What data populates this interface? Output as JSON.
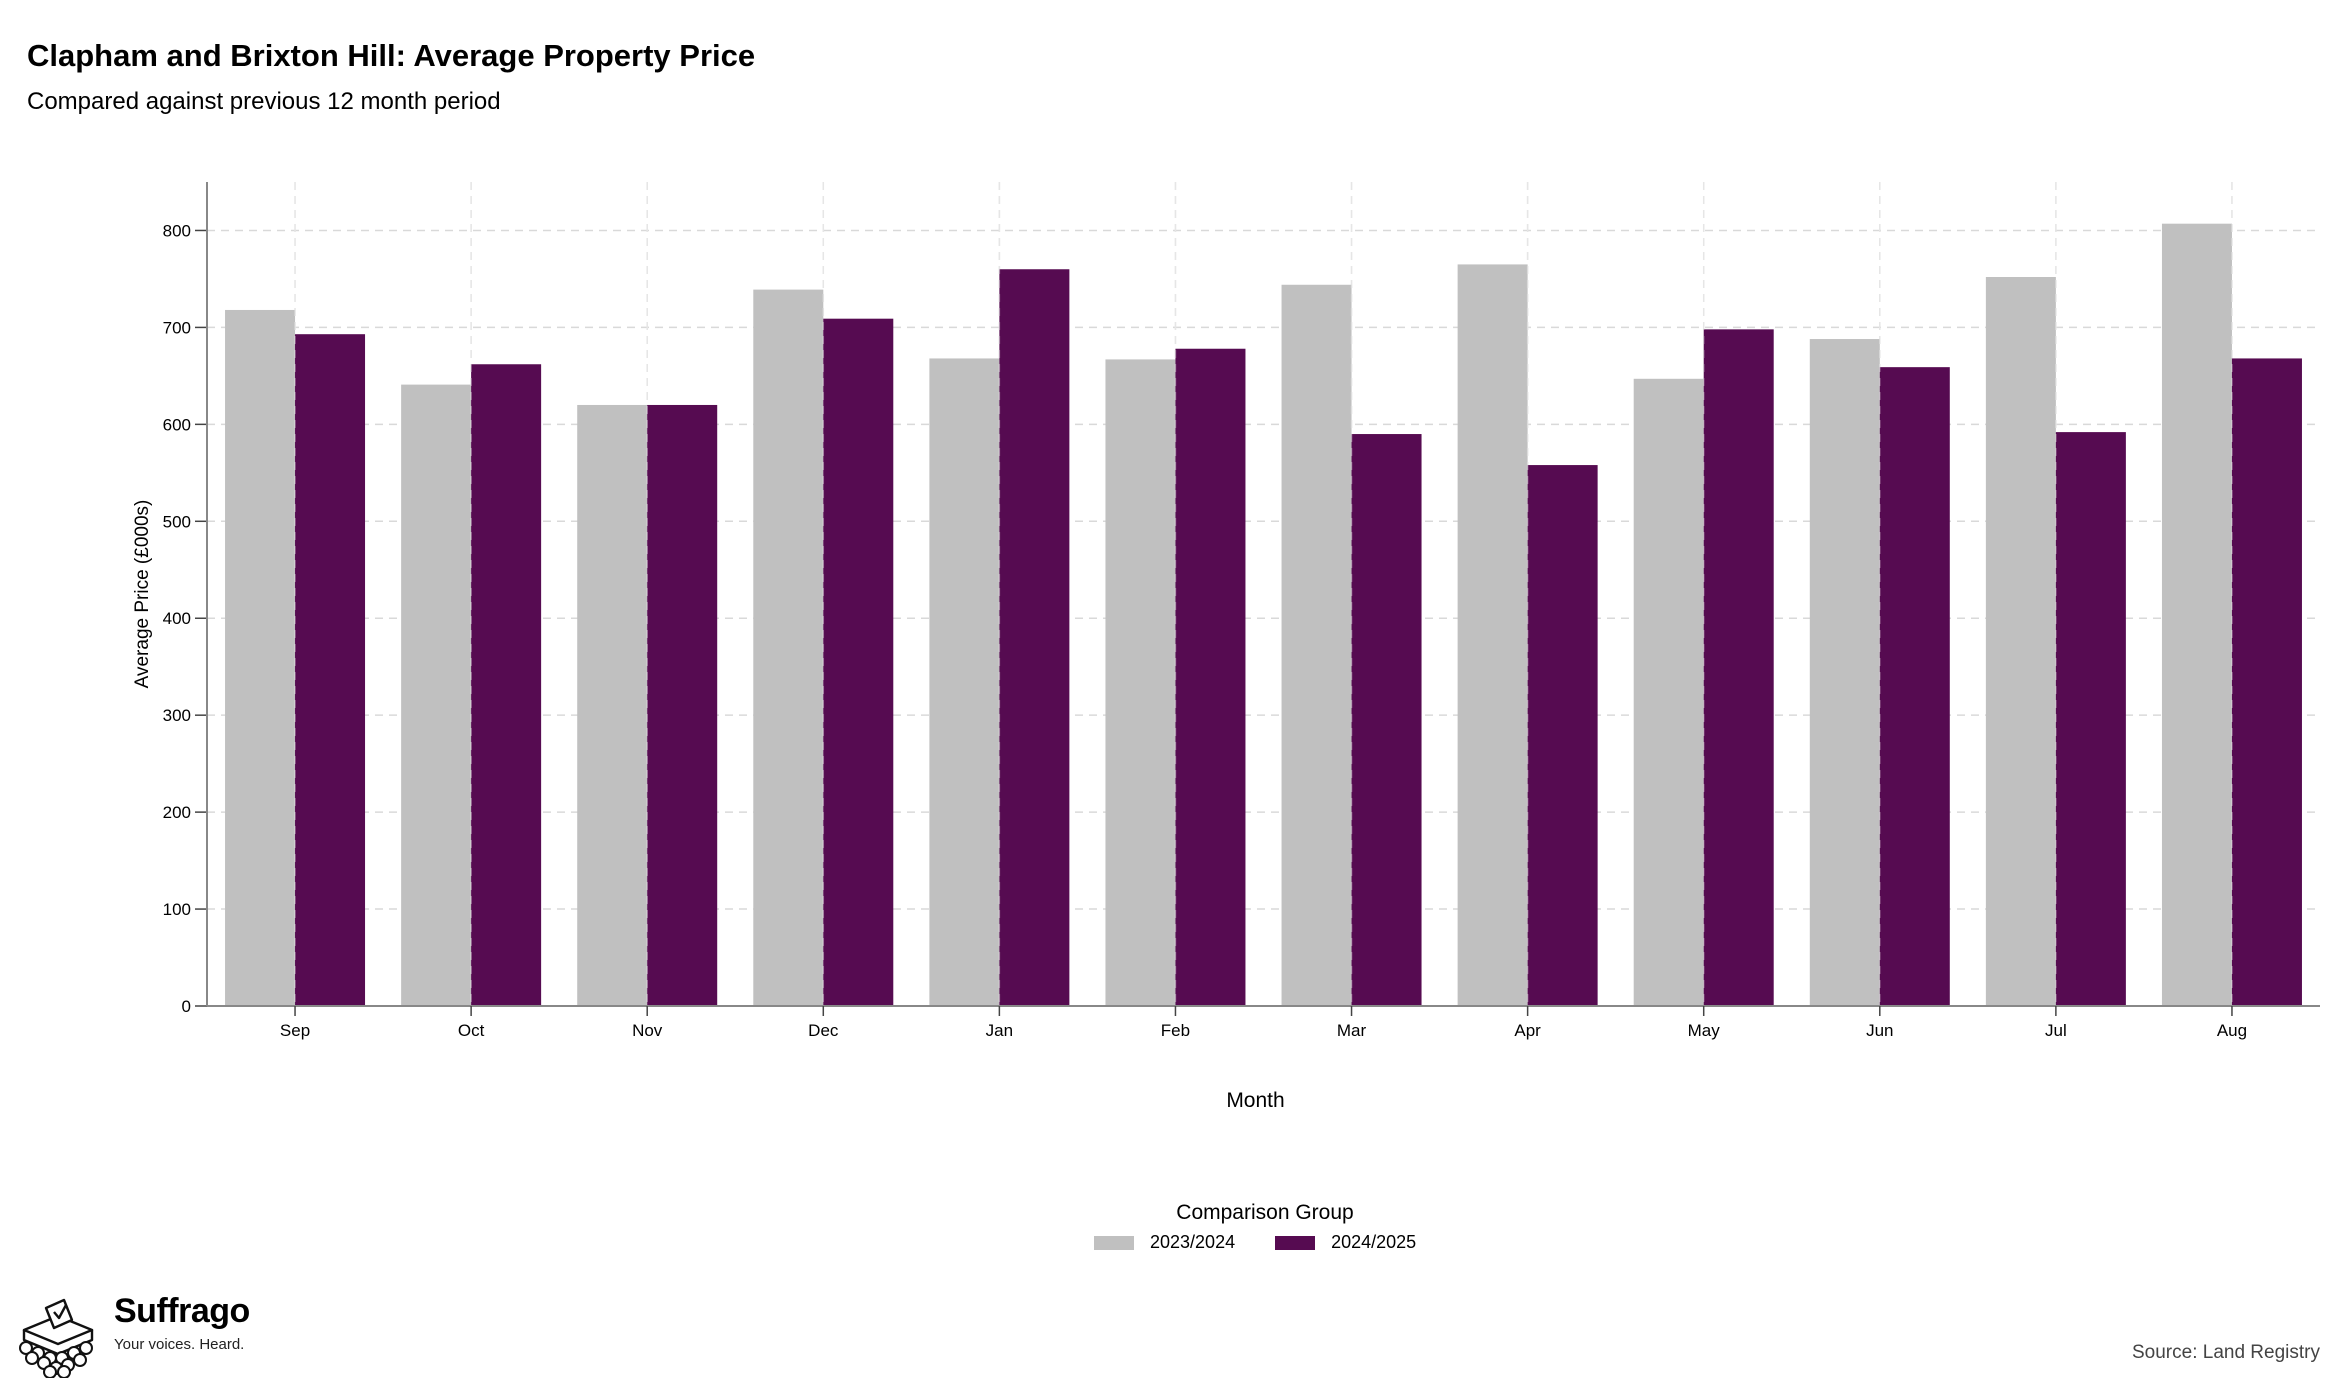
{
  "header": {
    "title": "Clapham and Brixton Hill: Average Property Price",
    "subtitle": "Compared against previous 12 month period"
  },
  "legend": {
    "title": "Comparison Group",
    "items": [
      {
        "label": "2023/2024",
        "color": "#c0c0c0"
      },
      {
        "label": "2024/2025",
        "color": "#560b51"
      }
    ]
  },
  "branding": {
    "name": "Suffrago",
    "tagline": "Your voices. Heard."
  },
  "source": "Source: Land Registry",
  "chart_data": {
    "type": "bar",
    "xlabel": "Month",
    "ylabel": "Average Price (£000s)",
    "ylim": [
      0,
      850
    ],
    "yticks": [
      0,
      100,
      200,
      300,
      400,
      500,
      600,
      700,
      800
    ],
    "grid": true,
    "legend_position": "bottom",
    "categories": [
      "Sep",
      "Oct",
      "Nov",
      "Dec",
      "Jan",
      "Feb",
      "Mar",
      "Apr",
      "May",
      "Jun",
      "Jul",
      "Aug"
    ],
    "series": [
      {
        "name": "2023/2024",
        "color": "#c0c0c0",
        "values": [
          718,
          641,
          620,
          739,
          668,
          667,
          744,
          765,
          647,
          688,
          752,
          807
        ]
      },
      {
        "name": "2024/2025",
        "color": "#560b51",
        "values": [
          693,
          662,
          620,
          709,
          760,
          678,
          590,
          558,
          698,
          659,
          592,
          668
        ]
      }
    ]
  }
}
